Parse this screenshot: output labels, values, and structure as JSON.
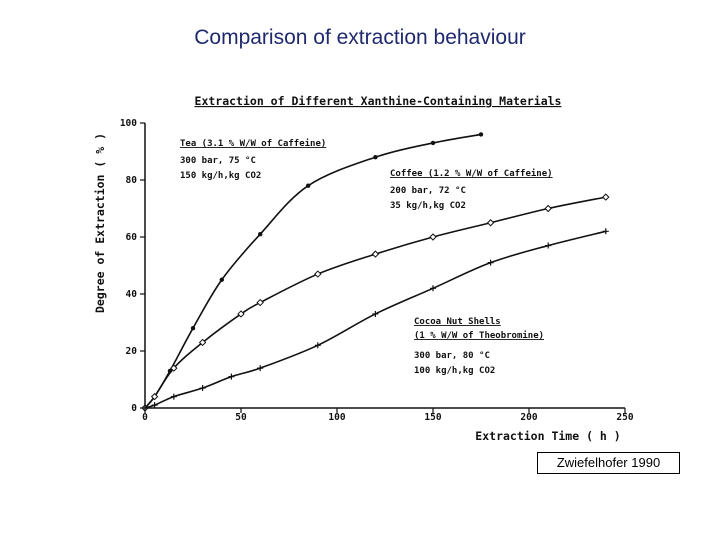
{
  "slide": {
    "title": "Comparison of extraction behaviour",
    "source": "Zwiefelhofer 1990"
  },
  "chart_data": {
    "type": "line",
    "title": "Extraction of Different Xanthine-Containing Materials",
    "xlabel": "Extraction Time ( h )",
    "ylabel": "Degree of Extraction ( % )",
    "xlim": [
      0,
      250
    ],
    "ylim": [
      0,
      100
    ],
    "xticks": [
      0,
      50,
      100,
      150,
      200,
      250
    ],
    "yticks": [
      0,
      20,
      40,
      60,
      80,
      100
    ],
    "grid": false,
    "series": [
      {
        "name": "Tea (3.1 % W/W of Caffeine)",
        "conditions": [
          "300 bar, 75 °C",
          "150 kg/h,kg CO2"
        ],
        "marker": "dot",
        "x": [
          0,
          5,
          13,
          25,
          40,
          60,
          85,
          120,
          150,
          175
        ],
        "y": [
          0,
          4,
          13,
          28,
          45,
          61,
          78,
          88,
          93,
          96
        ]
      },
      {
        "name": "Coffee (1.2 % W/W of Caffeine)",
        "conditions": [
          "200 bar, 72 °C",
          "35 kg/h,kg CO2"
        ],
        "marker": "diamond",
        "x": [
          0,
          5,
          15,
          30,
          50,
          60,
          90,
          120,
          150,
          180,
          210,
          240
        ],
        "y": [
          0,
          4,
          14,
          23,
          33,
          37,
          47,
          54,
          60,
          65,
          70,
          74
        ]
      },
      {
        "name": "Cocoa Nut Shells (1 % W/W of Theobromine)",
        "conditions": [
          "300 bar, 80 °C",
          "100 kg/h,kg CO2"
        ],
        "marker": "plus",
        "x": [
          0,
          5,
          15,
          30,
          45,
          60,
          90,
          120,
          150,
          180,
          210,
          240
        ],
        "y": [
          0,
          1,
          4,
          7,
          11,
          14,
          22,
          33,
          42,
          51,
          57,
          62
        ]
      }
    ]
  }
}
